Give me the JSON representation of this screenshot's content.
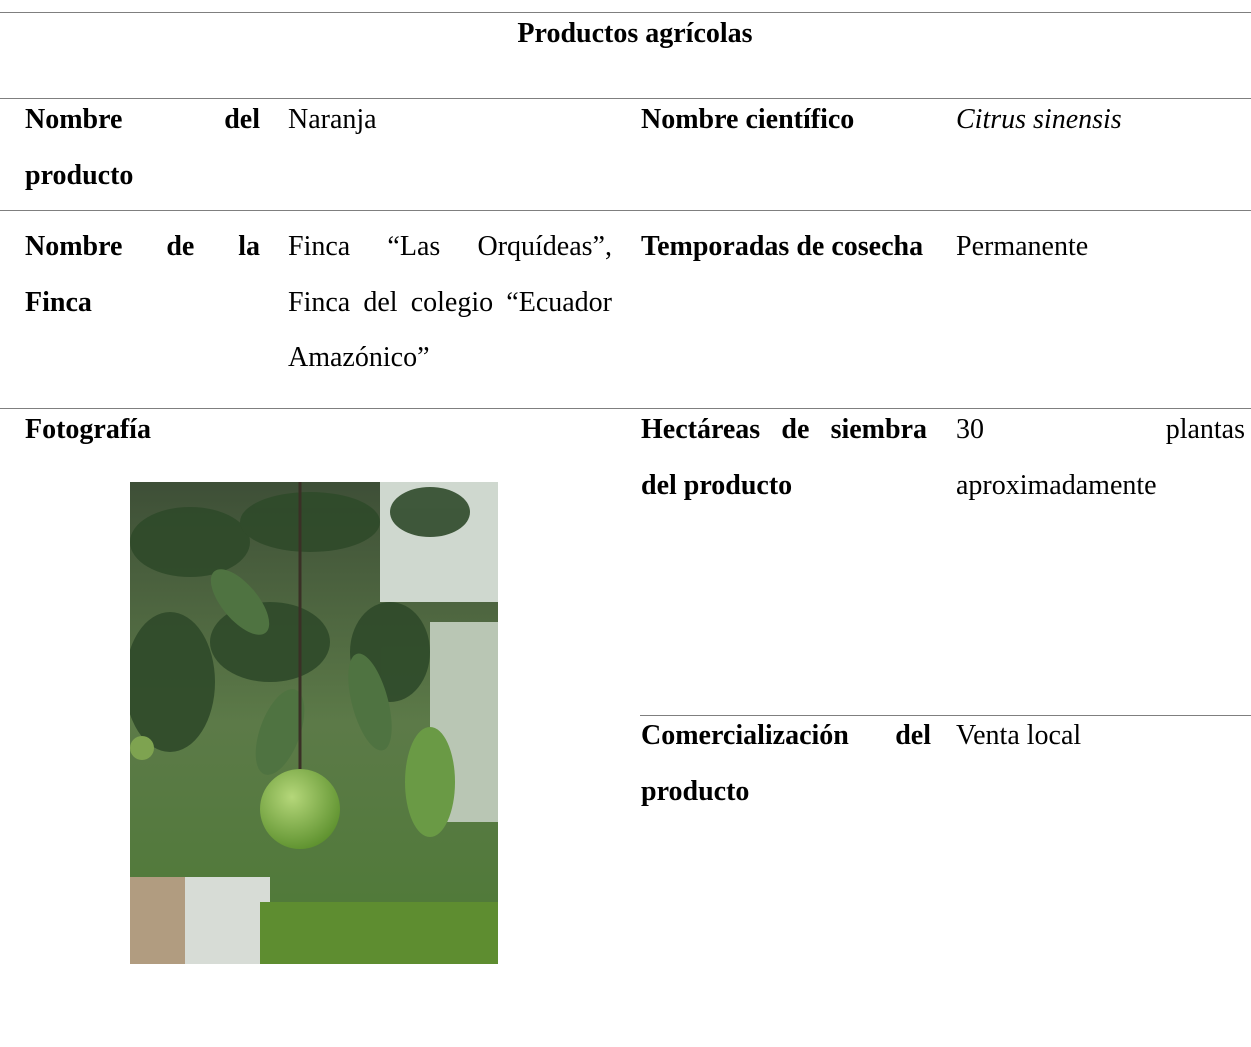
{
  "table": {
    "title": "Productos agrícolas",
    "rows": [
      [
        "Nombre del producto",
        "Naranja",
        "Nombre científico",
        "Citrus sinensis"
      ],
      [
        "Nombre de la Finca",
        "Finca “Las Orquídeas”, Finca del colegio “Ecuador Amazónico”",
        "Temporadas de cosecha",
        "Permanente"
      ],
      [
        "Fotografía",
        "Hectáreas de siembra del producto",
        "30 plantas aproximadamente"
      ],
      [
        "Comercialización del producto",
        "Venta local"
      ]
    ]
  }
}
